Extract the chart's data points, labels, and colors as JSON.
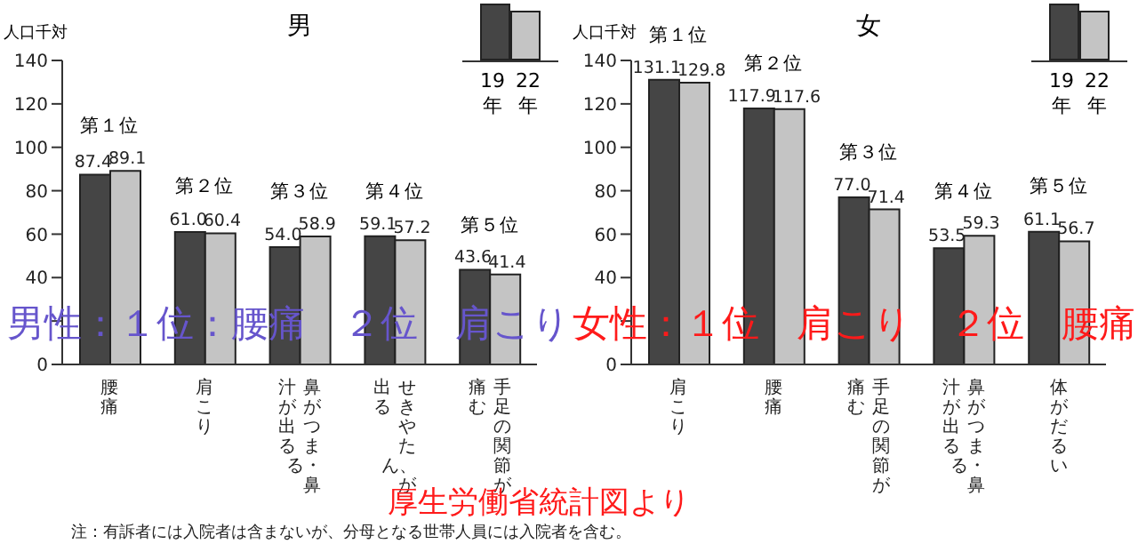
{
  "chart_data": [
    {
      "type": "bar",
      "title": "男",
      "ylabel": "人口千対",
      "categories": [
        "腰痛",
        "肩こり",
        "鼻がつまる・鼻汁が出る",
        "せきやたん、が出る",
        "手足の関節が痛む"
      ],
      "series": [
        {
          "name": "19年",
          "color": "#454545",
          "values": [
            87.4,
            61.0,
            54.0,
            59.1,
            43.6
          ],
          "value_labels": [
            "87.4",
            "61.0",
            "54.0",
            "59.1",
            "43.6"
          ]
        },
        {
          "name": "22年",
          "color": "#c4c4c4",
          "values": [
            89.1,
            60.4,
            58.9,
            57.2,
            41.4
          ],
          "value_labels": [
            "89.1",
            "60.4",
            "58.9",
            "57.2",
            "41.4"
          ]
        }
      ],
      "ylim": [
        0,
        140
      ],
      "yticks": [
        0,
        {
          "value": 20,
          "label": null
        },
        40,
        60,
        80,
        100,
        120,
        140
      ],
      "legend": "top right",
      "annotations": [
        "第１位",
        "第２位",
        "第３位",
        "第４位",
        "第５位",
        "男性：１位：腰痛　２位　肩こり",
        "厚生労働省統計図より",
        "注：有訴者には入院者は含まないが、分母となる世帯人員には入院者を含む。"
      ]
    },
    {
      "type": "bar",
      "title": "女",
      "ylabel": "人口千対",
      "categories": [
        "肩こり",
        "腰痛",
        "手足の関節が痛む",
        "鼻がつまる・鼻汁が出る",
        "体がだるい"
      ],
      "series": [
        {
          "name": "19年",
          "color": "#454545",
          "values": [
            131.1,
            117.9,
            77.0,
            53.5,
            61.1
          ],
          "value_labels": [
            "131.1",
            "117.9",
            "77.0",
            "53.5",
            "61.1"
          ]
        },
        {
          "name": "22年",
          "color": "#c4c4c4",
          "values": [
            129.8,
            117.6,
            71.4,
            59.3,
            56.7
          ],
          "value_labels": [
            "129.8",
            "117.6",
            "71.4",
            "59.3",
            "56.7"
          ]
        }
      ],
      "ylim": [
        0,
        140
      ],
      "yticks": [
        0,
        {
          "value": 20,
          "label": null
        },
        40,
        60,
        80,
        100,
        120,
        140
      ],
      "legend": "top right",
      "annotations": [
        "第１位",
        "第２位",
        "第３位",
        "第４位",
        "第５位",
        "女性：１位　肩こり　２位　腰痛"
      ]
    }
  ]
}
